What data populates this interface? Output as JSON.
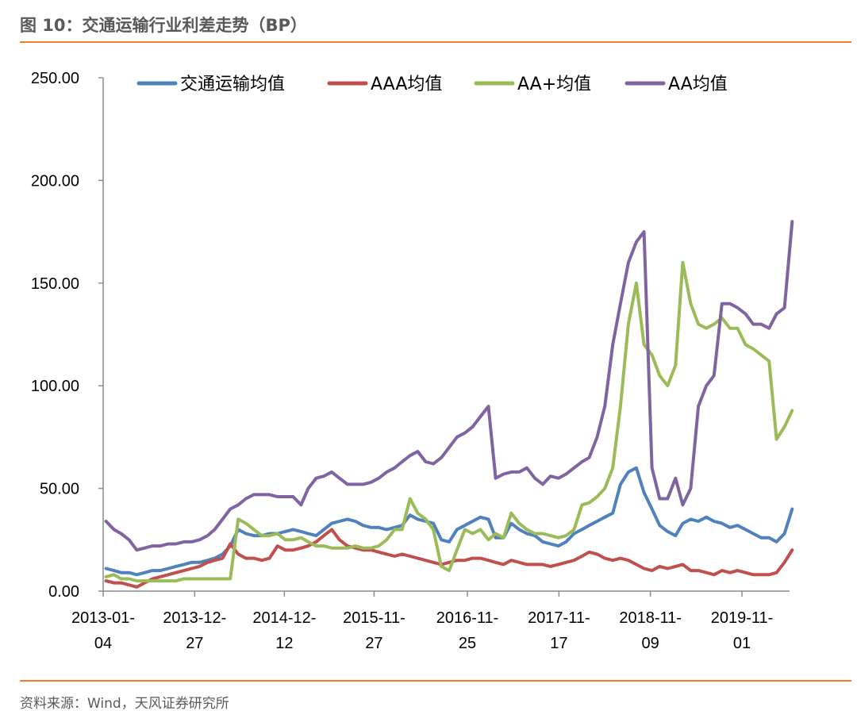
{
  "title": "图 10：交通运输行业利差走势（BP）",
  "source": "资料来源：Wind，天风证券研究所",
  "chart_data": {
    "type": "line",
    "title": "图 10：交通运输行业利差走势（BP）",
    "ylim": [
      0,
      250
    ],
    "yticks": [
      "0.00",
      "50.00",
      "100.00",
      "150.00",
      "200.00",
      "250.00"
    ],
    "xticks": [
      {
        "date": "2013-01-04",
        "line1": "2013-01-",
        "line2": "04"
      },
      {
        "date": "2013-12-27",
        "line1": "2013-12-",
        "line2": "27"
      },
      {
        "date": "2014-12-12",
        "line1": "2014-12-",
        "line2": "12"
      },
      {
        "date": "2015-11-27",
        "line1": "2015-11-",
        "line2": "27"
      },
      {
        "date": "2016-11-25",
        "line1": "2016-11-",
        "line2": "25"
      },
      {
        "date": "2017-11-17",
        "line1": "2017-11-",
        "line2": "17"
      },
      {
        "date": "2018-11-09",
        "line1": "2018-11-",
        "line2": "09"
      },
      {
        "date": "2019-11-01",
        "line1": "2019-11-",
        "line2": "01"
      }
    ],
    "grid": false,
    "legend": "top",
    "x": [
      "2013-01",
      "2013-02",
      "2013-03",
      "2013-04",
      "2013-05",
      "2013-06",
      "2013-07",
      "2013-08",
      "2013-09",
      "2013-10",
      "2013-11",
      "2013-12",
      "2014-01",
      "2014-02",
      "2014-03",
      "2014-04",
      "2014-05",
      "2014-06",
      "2014-07",
      "2014-08",
      "2014-09",
      "2014-10",
      "2014-11",
      "2014-12",
      "2015-01",
      "2015-02",
      "2015-03",
      "2015-04",
      "2015-05",
      "2015-06",
      "2015-07",
      "2015-08",
      "2015-09",
      "2015-10",
      "2015-11",
      "2015-12",
      "2016-01",
      "2016-02",
      "2016-03",
      "2016-04",
      "2016-05",
      "2016-06",
      "2016-07",
      "2016-08",
      "2016-09",
      "2016-10",
      "2016-11",
      "2016-12",
      "2017-01",
      "2017-02",
      "2017-03",
      "2017-04",
      "2017-05",
      "2017-06",
      "2017-07",
      "2017-08",
      "2017-09",
      "2017-10",
      "2017-11",
      "2017-12",
      "2018-01",
      "2018-02",
      "2018-03",
      "2018-04",
      "2018-05",
      "2018-06",
      "2018-07",
      "2018-08",
      "2018-09",
      "2018-10",
      "2018-11",
      "2018-12",
      "2019-01",
      "2019-02",
      "2019-03",
      "2019-04",
      "2019-05",
      "2019-06",
      "2019-07",
      "2019-08",
      "2019-09",
      "2019-10",
      "2019-11",
      "2019-12",
      "2020-01",
      "2020-02",
      "2020-03",
      "2020-04",
      "2020-05"
    ],
    "series": [
      {
        "name": "交通运输均值",
        "color": "#4F81BD",
        "values": [
          11,
          10,
          9,
          9,
          8,
          9,
          10,
          10,
          11,
          12,
          13,
          14,
          14,
          15,
          16,
          18,
          22,
          30,
          28,
          27,
          27,
          28,
          28,
          29,
          30,
          29,
          28,
          27,
          30,
          33,
          34,
          35,
          34,
          32,
          31,
          31,
          30,
          31,
          32,
          37,
          35,
          34,
          33,
          25,
          24,
          30,
          32,
          34,
          36,
          35,
          26,
          26,
          33,
          30,
          28,
          27,
          24,
          23,
          22,
          24,
          28,
          30,
          32,
          34,
          36,
          38,
          52,
          58,
          60,
          48,
          40,
          32,
          29,
          27,
          33,
          35,
          34,
          36,
          34,
          33,
          31,
          32,
          30,
          28,
          26,
          26,
          24,
          28,
          40
        ]
      },
      {
        "name": "AAA均值",
        "color": "#C0504D",
        "values": [
          5,
          4,
          4,
          3,
          2,
          4,
          6,
          7,
          8,
          9,
          10,
          11,
          12,
          14,
          15,
          16,
          23,
          18,
          16,
          16,
          15,
          16,
          22,
          20,
          20,
          21,
          22,
          24,
          27,
          30,
          25,
          22,
          21,
          20,
          20,
          19,
          18,
          17,
          18,
          17,
          16,
          15,
          14,
          13,
          14,
          15,
          15,
          16,
          16,
          15,
          14,
          13,
          15,
          14,
          13,
          13,
          13,
          12,
          13,
          14,
          15,
          17,
          19,
          18,
          16,
          15,
          16,
          15,
          13,
          11,
          10,
          12,
          11,
          12,
          13,
          10,
          10,
          9,
          8,
          10,
          9,
          10,
          9,
          8,
          8,
          8,
          9,
          14,
          20
        ]
      },
      {
        "name": "AA+均值",
        "color": "#9BBB59",
        "values": [
          7,
          8,
          6,
          6,
          5,
          5,
          5,
          5,
          5,
          5,
          6,
          6,
          6,
          6,
          6,
          6,
          6,
          35,
          33,
          30,
          27,
          27,
          28,
          25,
          25,
          26,
          24,
          22,
          22,
          21,
          21,
          21,
          22,
          21,
          21,
          22,
          25,
          30,
          30,
          45,
          38,
          35,
          30,
          12,
          10,
          20,
          30,
          28,
          30,
          25,
          28,
          26,
          38,
          33,
          30,
          28,
          28,
          27,
          26,
          27,
          30,
          42,
          43,
          46,
          50,
          60,
          90,
          130,
          150,
          120,
          115,
          105,
          100,
          110,
          160,
          140,
          130,
          128,
          130,
          133,
          128,
          128,
          120,
          118,
          115,
          112,
          74,
          80,
          88
        ]
      },
      {
        "name": "AA均值",
        "color": "#8064A2",
        "values": [
          34,
          30,
          28,
          25,
          20,
          21,
          22,
          22,
          23,
          23,
          24,
          24,
          25,
          27,
          30,
          35,
          40,
          42,
          45,
          47,
          47,
          47,
          46,
          46,
          46,
          42,
          50,
          55,
          56,
          58,
          55,
          52,
          52,
          52,
          53,
          55,
          58,
          60,
          63,
          66,
          68,
          63,
          62,
          65,
          70,
          75,
          77,
          80,
          85,
          90,
          55,
          57,
          58,
          58,
          60,
          55,
          52,
          56,
          55,
          57,
          60,
          63,
          65,
          75,
          90,
          120,
          140,
          160,
          170,
          175,
          60,
          45,
          45,
          55,
          42,
          50,
          90,
          100,
          105,
          140,
          140,
          138,
          135,
          130,
          130,
          128,
          135,
          138,
          180
        ]
      }
    ]
  }
}
